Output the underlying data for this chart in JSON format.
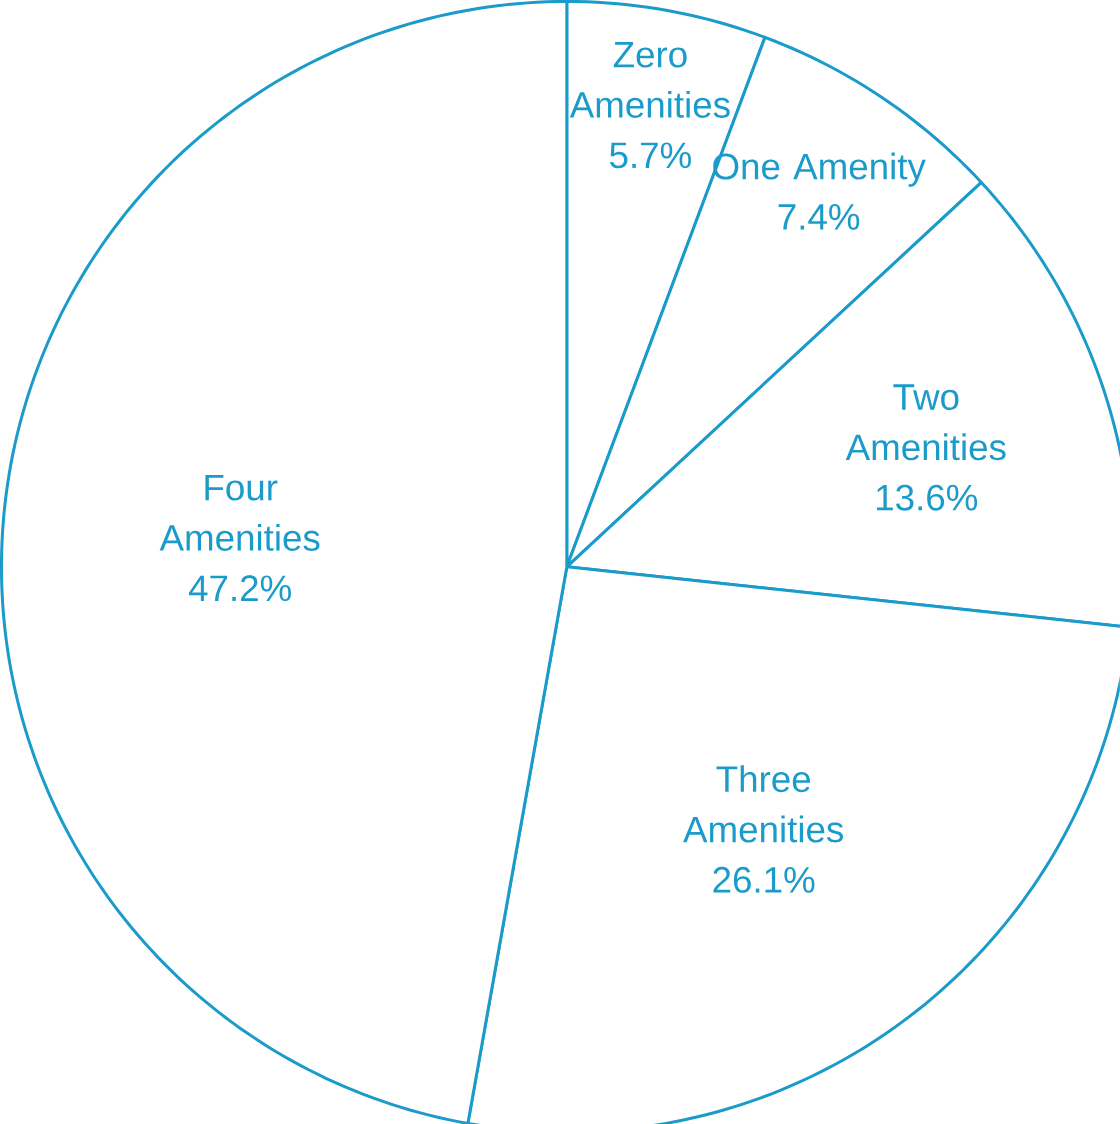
{
  "chart_data": {
    "type": "pie",
    "categories": [
      "Zero Amenities",
      "One Amenity",
      "Two Amenities",
      "Three Amenities",
      "Four Amenities"
    ],
    "values": [
      5.7,
      7.4,
      13.6,
      26.1,
      47.2
    ],
    "value_labels": [
      "5.7%",
      "7.4%",
      "13.6%",
      "26.1%",
      "47.2%"
    ],
    "colors": [
      "#ffffff",
      "#ffffff",
      "#ffffff",
      "#ffffff",
      "#ffffff"
    ]
  }
}
